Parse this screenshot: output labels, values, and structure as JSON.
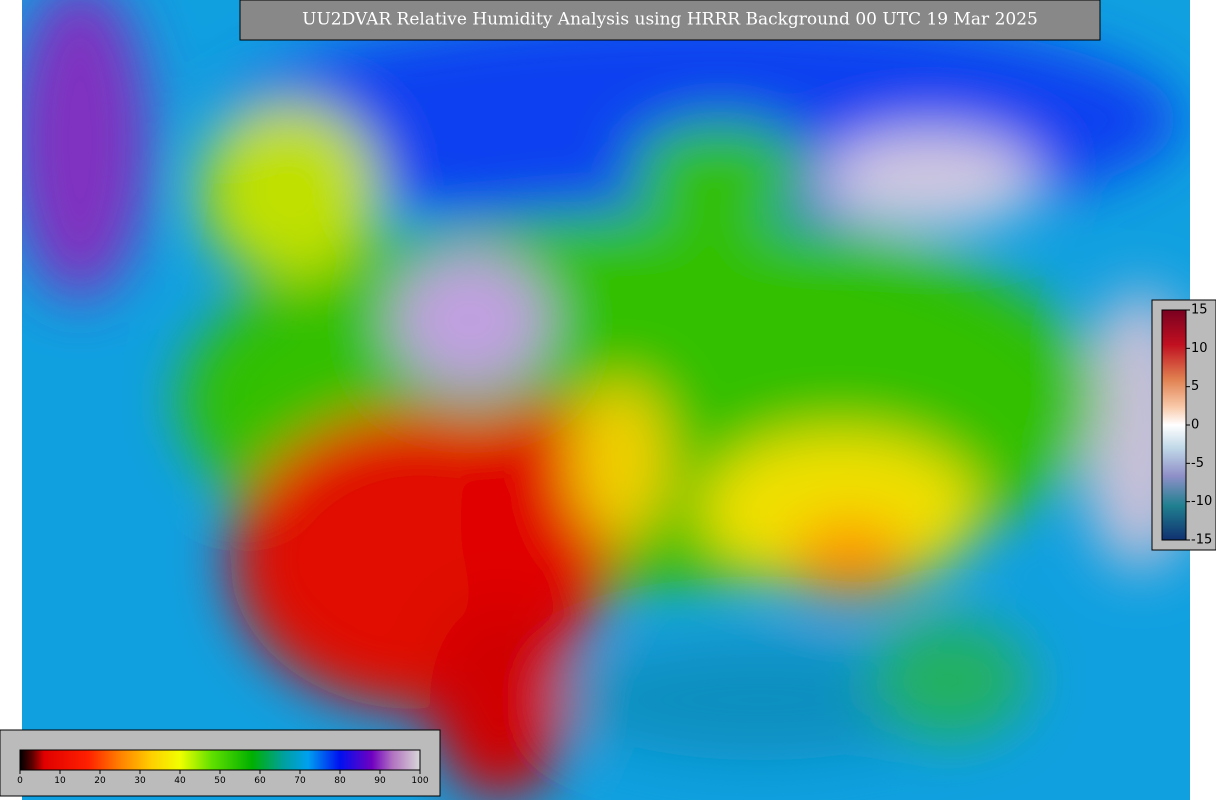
{
  "title": "UU2DVAR Relative Humidity Analysis using HRRR Background 00 UTC 19 Mar 2025",
  "humidity_colorbar": {
    "lim": [
      0,
      100
    ],
    "ticks": [
      0,
      10,
      20,
      30,
      40,
      50,
      60,
      70,
      80,
      90,
      100
    ]
  },
  "increment_colorbar": {
    "lim": [
      -15,
      15
    ],
    "ticks": [
      15,
      10,
      5,
      0,
      -5,
      -10,
      -15
    ]
  }
}
